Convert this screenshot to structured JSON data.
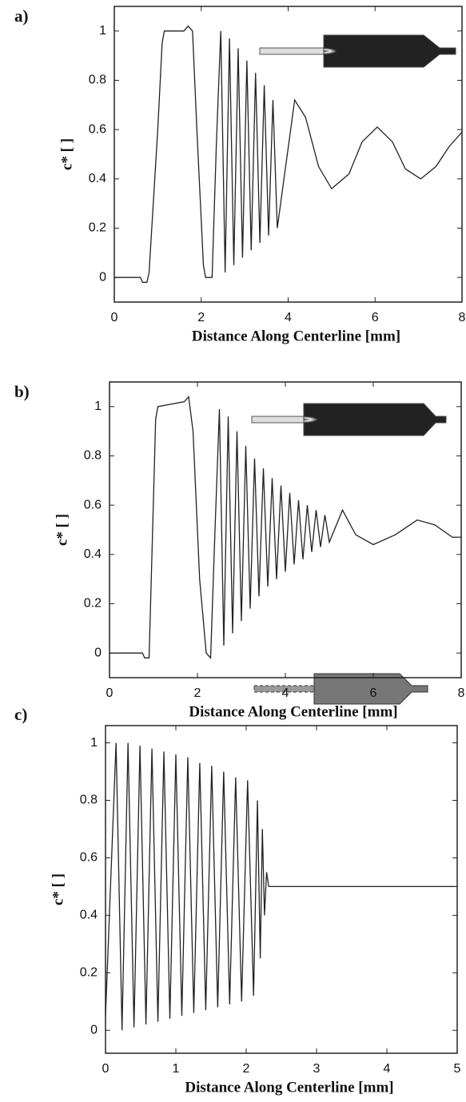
{
  "chart_data": [
    {
      "type": "line",
      "label": "a)",
      "xlabel": "Distance Along Centerline [mm]",
      "ylabel": "c* [ ]",
      "xlim": [
        0,
        8
      ],
      "ylim": [
        -0.1,
        1.1
      ],
      "xticks": [
        0,
        2,
        4,
        6,
        8
      ],
      "yticks": [
        0,
        0.2,
        0.4,
        0.6,
        0.8,
        1
      ],
      "x": [
        0,
        0.6,
        0.65,
        0.75,
        0.8,
        1.0,
        1.1,
        1.15,
        1.6,
        1.7,
        1.8,
        1.9,
        2.05,
        2.1,
        2.25,
        2.35,
        2.45,
        2.55,
        2.65,
        2.75,
        2.85,
        2.95,
        3.05,
        3.15,
        3.25,
        3.35,
        3.45,
        3.55,
        3.65,
        3.75,
        4.15,
        4.4,
        4.7,
        5.0,
        5.4,
        5.7,
        6.05,
        6.4,
        6.7,
        7.05,
        7.4,
        7.7,
        8.0
      ],
      "series": [
        {
          "color": "#222",
          "values": [
            0,
            0,
            -0.02,
            -0.02,
            0.02,
            0.6,
            0.95,
            1.0,
            1.0,
            1.02,
            1.0,
            0.6,
            0.05,
            0,
            0,
            0.55,
            1.0,
            0.02,
            0.97,
            0.05,
            0.93,
            0.08,
            0.88,
            0.11,
            0.83,
            0.14,
            0.78,
            0.17,
            0.72,
            0.2,
            0.72,
            0.65,
            0.45,
            0.36,
            0.42,
            0.55,
            0.61,
            0.55,
            0.44,
            0.4,
            0.45,
            0.53,
            0.59
          ]
        }
      ]
    },
    {
      "type": "line",
      "label": "b)",
      "xlabel": "Distance Along Centerline [mm]",
      "ylabel": "c* [ ]",
      "xlim": [
        0,
        8
      ],
      "ylim": [
        -0.1,
        1.1
      ],
      "xticks": [
        0,
        2,
        4,
        6,
        8
      ],
      "yticks": [
        0,
        0.2,
        0.4,
        0.6,
        0.8,
        1
      ],
      "x": [
        0,
        0.75,
        0.8,
        0.9,
        0.95,
        1.05,
        1.1,
        1.7,
        1.8,
        1.9,
        2.05,
        2.2,
        2.3,
        2.4,
        2.5,
        2.6,
        2.7,
        2.8,
        2.9,
        3.0,
        3.1,
        3.2,
        3.3,
        3.4,
        3.5,
        3.6,
        3.7,
        3.8,
        3.9,
        4.0,
        4.1,
        4.2,
        4.3,
        4.4,
        4.5,
        4.6,
        4.7,
        4.8,
        4.9,
        5.0,
        5.3,
        5.6,
        6.0,
        6.5,
        7.0,
        7.4,
        7.8,
        8.0
      ],
      "series": [
        {
          "color": "#222",
          "values": [
            0,
            0,
            -0.02,
            -0.02,
            0.3,
            0.95,
            1.0,
            1.02,
            1.04,
            0.9,
            0.3,
            0,
            -0.02,
            0.5,
            0.99,
            0.03,
            0.96,
            0.08,
            0.9,
            0.13,
            0.84,
            0.18,
            0.79,
            0.23,
            0.75,
            0.27,
            0.71,
            0.3,
            0.68,
            0.33,
            0.65,
            0.36,
            0.62,
            0.38,
            0.6,
            0.41,
            0.58,
            0.43,
            0.56,
            0.45,
            0.58,
            0.48,
            0.44,
            0.48,
            0.54,
            0.52,
            0.47,
            0.47
          ]
        }
      ]
    },
    {
      "type": "line",
      "label": "c)",
      "xlabel": "Distance Along Centerline [mm]",
      "ylabel": "c* [ ]",
      "xlim": [
        0,
        5
      ],
      "ylim": [
        -0.08,
        1.06
      ],
      "xticks": [
        0,
        1,
        2,
        3,
        4,
        5
      ],
      "yticks": [
        0,
        0.2,
        0.4,
        0.6,
        0.8,
        1
      ],
      "x": [
        0,
        0.15,
        0.235,
        0.32,
        0.405,
        0.49,
        0.575,
        0.66,
        0.745,
        0.83,
        0.915,
        1.0,
        1.085,
        1.17,
        1.255,
        1.34,
        1.425,
        1.51,
        1.595,
        1.68,
        1.765,
        1.85,
        1.935,
        2.02,
        2.105,
        2.16,
        2.2,
        2.23,
        2.26,
        2.29,
        2.32,
        2.4,
        5.0
      ],
      "series": [
        {
          "color": "#222",
          "values": [
            0.05,
            1.0,
            0.0,
            1.0,
            0.01,
            0.99,
            0.02,
            0.98,
            0.03,
            0.97,
            0.04,
            0.96,
            0.05,
            0.95,
            0.06,
            0.93,
            0.07,
            0.92,
            0.08,
            0.9,
            0.09,
            0.88,
            0.1,
            0.87,
            0.12,
            0.8,
            0.25,
            0.7,
            0.4,
            0.55,
            0.5,
            0.5,
            0.5
          ]
        }
      ]
    }
  ]
}
